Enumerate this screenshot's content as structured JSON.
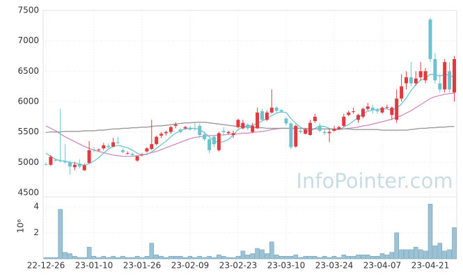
{
  "chart_data": {
    "type": "candlestick",
    "categories": [
      "22-12-26",
      null,
      null,
      null,
      null,
      null,
      null,
      null,
      null,
      null,
      "23-01-10",
      null,
      null,
      null,
      null,
      null,
      null,
      null,
      null,
      null,
      "23-01-26",
      null,
      null,
      null,
      null,
      null,
      null,
      null,
      null,
      null,
      "23-02-09",
      null,
      null,
      null,
      null,
      null,
      null,
      null,
      null,
      null,
      "23-02-23",
      null,
      null,
      null,
      null,
      null,
      null,
      null,
      null,
      null,
      "23-03-10",
      null,
      null,
      null,
      null,
      null,
      null,
      null,
      null,
      null,
      "23-03-24",
      null,
      null,
      null,
      null,
      null,
      null,
      null,
      null,
      null,
      "23-04-07",
      null,
      null,
      null,
      null,
      null,
      null,
      null,
      null,
      null,
      "23-04-21",
      null,
      null,
      null,
      null,
      null
    ],
    "open": [
      4970,
      4960,
      5040,
      5030,
      5020,
      5000,
      4920,
      4980,
      4870,
      4990,
      5210,
      5200,
      5230,
      5270,
      5260,
      5330,
      5200,
      5150,
      5140,
      5030,
      5120,
      5180,
      5220,
      5300,
      5440,
      5480,
      5500,
      5600,
      5540,
      5560,
      5570,
      5560,
      5600,
      5460,
      5380,
      5420,
      5200,
      5520,
      5480,
      5450,
      5580,
      5560,
      5620,
      5500,
      5560,
      5840,
      5700,
      5820,
      5900,
      5860,
      5720,
      5640,
      5260,
      5520,
      5470,
      5450,
      5680,
      5600,
      5500,
      5480,
      5520,
      5550,
      5600,
      5780,
      5830,
      5700,
      5750,
      5880,
      5900,
      5860,
      5820,
      5900,
      5780,
      5700,
      6050,
      6300,
      6400,
      6300,
      6400,
      6350,
      7350,
      6700,
      6300,
      6200,
      6500,
      6150
    ],
    "high": [
      5000,
      5120,
      5060,
      5880,
      5300,
      5030,
      5010,
      5050,
      4980,
      5350,
      5250,
      5230,
      5320,
      5310,
      5400,
      5420,
      5230,
      5180,
      5160,
      5110,
      5150,
      5250,
      5700,
      5440,
      5500,
      5520,
      5600,
      5660,
      5560,
      5600,
      5600,
      5660,
      5640,
      5500,
      5400,
      5450,
      5500,
      5580,
      5520,
      5520,
      5720,
      5700,
      5650,
      5650,
      5900,
      5880,
      5850,
      6200,
      5920,
      5880,
      5740,
      5660,
      5620,
      5560,
      5560,
      5700,
      5800,
      5650,
      5540,
      5550,
      5600,
      5600,
      5800,
      5850,
      5900,
      5800,
      5900,
      5980,
      5950,
      5900,
      5920,
      5950,
      5920,
      6200,
      6450,
      6500,
      6650,
      6500,
      6650,
      6550,
      7380,
      6800,
      6450,
      6700,
      6650,
      6750
    ],
    "low": [
      4950,
      4940,
      5010,
      5000,
      4980,
      4800,
      4870,
      4900,
      4860,
      4980,
      5170,
      5180,
      5200,
      5230,
      5250,
      5300,
      5150,
      5130,
      5100,
      5010,
      5100,
      5160,
      5200,
      5280,
      5400,
      5440,
      5470,
      5560,
      5480,
      5540,
      5520,
      5520,
      5400,
      5350,
      5150,
      5250,
      5180,
      5450,
      5460,
      5400,
      5560,
      5540,
      5530,
      5480,
      5550,
      5680,
      5680,
      5800,
      5820,
      5820,
      5600,
      5220,
      5240,
      5470,
      5460,
      5440,
      5650,
      5500,
      5450,
      5330,
      5500,
      5530,
      5580,
      5760,
      5800,
      5650,
      5720,
      5850,
      5800,
      5800,
      5800,
      5880,
      5700,
      5650,
      6000,
      6200,
      6250,
      6260,
      6350,
      6300,
      6650,
      6300,
      6150,
      6150,
      6150,
      6000
    ],
    "close": [
      4960,
      5090,
      5030,
      5020,
      5000,
      4930,
      4960,
      4930,
      4950,
      5200,
      5200,
      5210,
      5280,
      5250,
      5330,
      5320,
      5170,
      5150,
      5120,
      5100,
      5130,
      5230,
      5300,
      5420,
      5470,
      5500,
      5580,
      5620,
      5500,
      5580,
      5540,
      5550,
      5450,
      5380,
      5200,
      5300,
      5480,
      5500,
      5500,
      5480,
      5700,
      5650,
      5560,
      5600,
      5820,
      5700,
      5820,
      5900,
      5850,
      5840,
      5640,
      5250,
      5600,
      5500,
      5540,
      5650,
      5750,
      5520,
      5480,
      5500,
      5550,
      5580,
      5750,
      5820,
      5840,
      5780,
      5880,
      5920,
      5860,
      5840,
      5900,
      5910,
      5900,
      6050,
      6250,
      6400,
      6300,
      6380,
      6500,
      6500,
      6700,
      6350,
      6200,
      6650,
      6200,
      6700
    ],
    "up_color": "#e0393e",
    "down_color": "#6cc3cf",
    "ylim": [
      4500,
      7500
    ],
    "yticks": [
      4500,
      5000,
      5500,
      6000,
      6500,
      7000,
      7500
    ],
    "grid": true,
    "lines": [
      {
        "color": "#6cc3cf",
        "values": [
          5150,
          5100,
          5050,
          5030,
          5020,
          5000,
          4990,
          4970,
          4950,
          4980,
          5020,
          5080,
          5150,
          5220,
          5260,
          5280,
          5260,
          5240,
          5200,
          5150,
          5120,
          5130,
          5170,
          5230,
          5290,
          5350,
          5420,
          5480,
          5520,
          5550,
          5560,
          5560,
          5540,
          5490,
          5420,
          5350,
          5330,
          5340,
          5380,
          5450,
          5540,
          5580,
          5600,
          5610,
          5640,
          5680,
          5720,
          5770,
          5810,
          5830,
          5820,
          5720,
          5640,
          5580,
          5530,
          5510,
          5560,
          5600,
          5590,
          5560,
          5530,
          5540,
          5580,
          5620,
          5680,
          5740,
          5800,
          5840,
          5860,
          5870,
          5880,
          5880,
          5850,
          5890,
          5960,
          6060,
          6180,
          6280,
          6350,
          6380,
          6450,
          6440,
          6420,
          6450,
          6430,
          6400
        ]
      },
      {
        "color": "#d08ac0",
        "values": [
          5600,
          5560,
          5520,
          5470,
          5420,
          5380,
          5340,
          5300,
          5260,
          5230,
          5200,
          5180,
          5160,
          5140,
          5120,
          5110,
          5100,
          5100,
          5100,
          5110,
          5120,
          5140,
          5160,
          5180,
          5210,
          5240,
          5270,
          5300,
          5330,
          5360,
          5390,
          5410,
          5420,
          5430,
          5440,
          5440,
          5450,
          5450,
          5460,
          5460,
          5470,
          5480,
          5480,
          5490,
          5500,
          5510,
          5520,
          5540,
          5550,
          5560,
          5560,
          5560,
          5560,
          5560,
          5560,
          5550,
          5550,
          5550,
          5550,
          5550,
          5540,
          5540,
          5550,
          5560,
          5570,
          5580,
          5600,
          5610,
          5630,
          5650,
          5670,
          5690,
          5710,
          5740,
          5770,
          5810,
          5850,
          5900,
          5950,
          6000,
          6050,
          6080,
          6100,
          6120,
          6130,
          6140
        ]
      },
      {
        "color": "#999999",
        "values": [
          5490,
          5500,
          5500,
          5500,
          5510,
          5510,
          5510,
          5510,
          5520,
          5520,
          5520,
          5530,
          5530,
          5540,
          5550,
          5550,
          5560,
          5560,
          5570,
          5570,
          5580,
          5580,
          5590,
          5600,
          5600,
          5610,
          5620,
          5630,
          5640,
          5650,
          5650,
          5660,
          5660,
          5660,
          5650,
          5640,
          5630,
          5620,
          5610,
          5600,
          5590,
          5590,
          5580,
          5580,
          5570,
          5570,
          5560,
          5560,
          5560,
          5560,
          5560,
          5560,
          5560,
          5560,
          5550,
          5550,
          5550,
          5550,
          5550,
          5550,
          5550,
          5550,
          5550,
          5550,
          5540,
          5540,
          5540,
          5540,
          5540,
          5540,
          5530,
          5530,
          5530,
          5530,
          5530,
          5530,
          5540,
          5550,
          5560,
          5560,
          5570,
          5570,
          5580,
          5580,
          5590,
          5590
        ]
      }
    ],
    "volume": [
      0.1,
      0.1,
      0.1,
      3.8,
      0.5,
      0.4,
      0.2,
      0.1,
      0.1,
      0.9,
      0.2,
      0.1,
      0.2,
      0.1,
      0.2,
      0.1,
      0.2,
      0.1,
      0.1,
      0.2,
      0.1,
      0.2,
      1.2,
      0.3,
      0.2,
      0.1,
      0.2,
      0.2,
      0.2,
      0.1,
      0.2,
      0.1,
      0.2,
      0.1,
      0.2,
      0.1,
      0.3,
      0.2,
      0.1,
      0.1,
      0.2,
      0.6,
      0.3,
      0.4,
      0.8,
      0.7,
      0.4,
      1.3,
      0.3,
      0.2,
      0.2,
      0.2,
      0.3,
      0.1,
      0.2,
      0.2,
      0.2,
      0.1,
      0.2,
      0.1,
      0.2,
      0.1,
      0.3,
      0.2,
      0.2,
      0.3,
      0.3,
      0.3,
      0.2,
      0.2,
      0.4,
      0.3,
      0.5,
      2.0,
      0.7,
      0.7,
      0.7,
      0.9,
      0.7,
      0.6,
      4.2,
      1.0,
      1.2,
      0.6,
      0.7,
      2.4
    ],
    "volume_color": "#9cc3d5",
    "y2lim": [
      0,
      4.65
    ],
    "y2ticks": [
      2,
      4
    ],
    "y2label": "10⁶",
    "watermark": "InfoPointer.com"
  }
}
